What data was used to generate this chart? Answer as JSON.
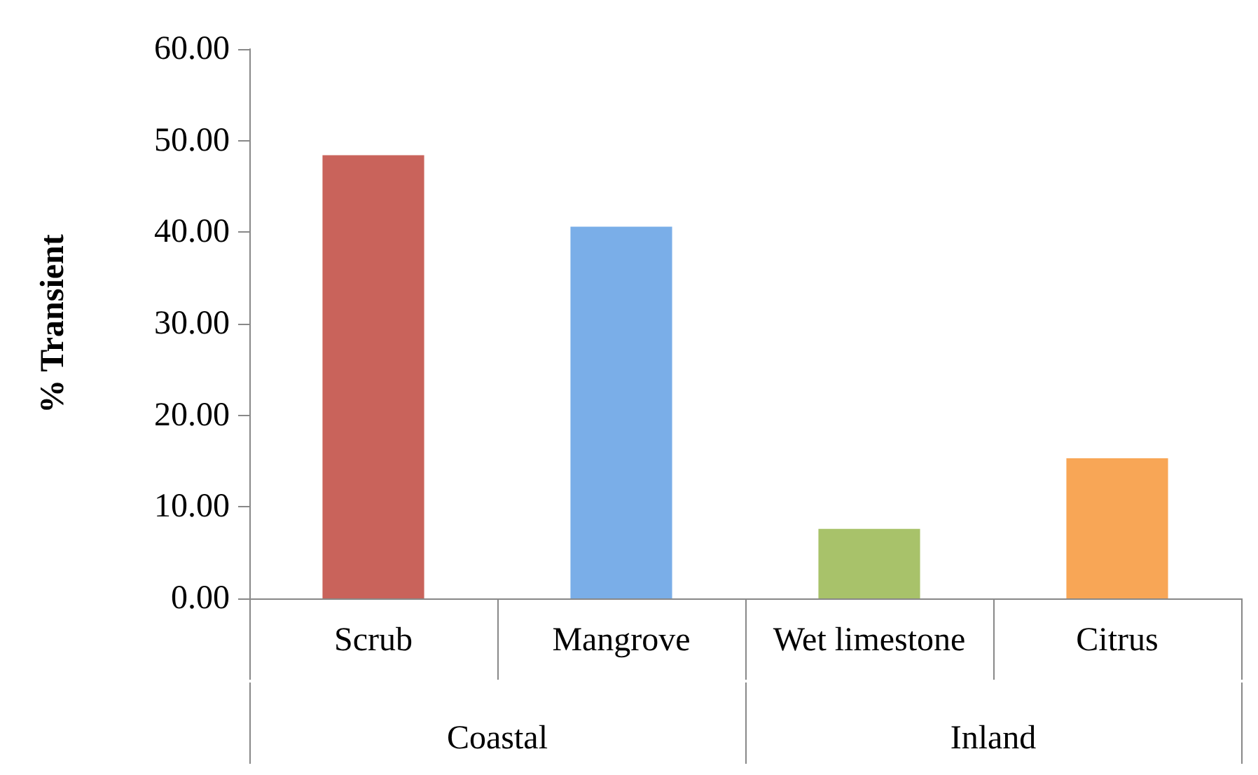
{
  "chart_data": {
    "type": "bar",
    "ylabel": "% Transient",
    "categories": [
      "Scrub",
      "Mangrove",
      "Wet limestone",
      "Citrus"
    ],
    "values": [
      48.4,
      40.6,
      7.6,
      15.3
    ],
    "colors": [
      "#c9635b",
      "#7aaee8",
      "#a8c26a",
      "#f8a656"
    ],
    "ylim": [
      0,
      60
    ],
    "yticks": [
      {
        "value": 0,
        "label": "0.00"
      },
      {
        "value": 10,
        "label": "10.00"
      },
      {
        "value": 20,
        "label": "20.00"
      },
      {
        "value": 30,
        "label": "30.00"
      },
      {
        "value": 40,
        "label": "40.00"
      },
      {
        "value": 50,
        "label": "50.00"
      },
      {
        "value": 60,
        "label": "60.00"
      }
    ],
    "annotations": [
      "Coastal",
      "Inland"
    ],
    "grid": false
  }
}
